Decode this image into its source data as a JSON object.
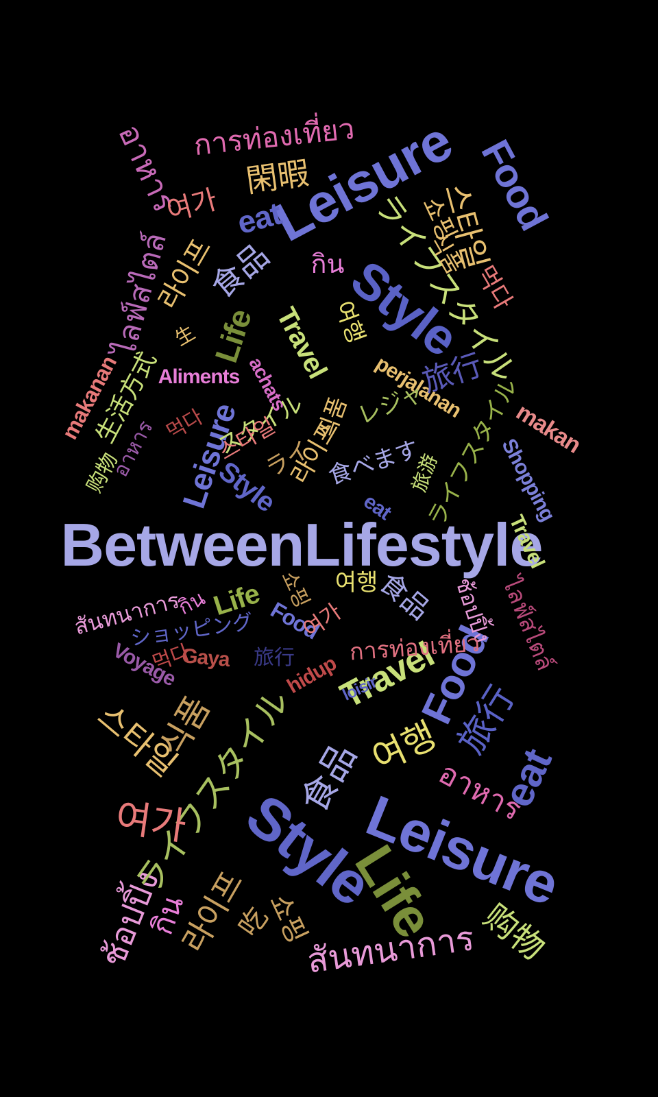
{
  "words": [
    {
      "text": "BetweenLifestyle",
      "color": "#a6a7e6",
      "kind": "b"
    },
    {
      "text": "Leisure",
      "color": "#6f74d6",
      "kind": "b"
    },
    {
      "text": "Leisure",
      "color": "#6f74d6",
      "kind": "b"
    },
    {
      "text": "Style",
      "color": "#5a62c6",
      "kind": "b"
    },
    {
      "text": "Style",
      "color": "#6066c8",
      "kind": "b"
    },
    {
      "text": "Life",
      "color": "#7a8f3a",
      "kind": "b"
    },
    {
      "text": "Food",
      "color": "#6f74d6",
      "kind": "b"
    },
    {
      "text": "Food",
      "color": "#6f74d6",
      "kind": "b"
    },
    {
      "text": "eat",
      "color": "#6066c8",
      "kind": "b"
    },
    {
      "text": "eat",
      "color": "#6066c8",
      "kind": "b"
    },
    {
      "text": "Travel",
      "color": "#c8e07a",
      "kind": "b"
    },
    {
      "text": "Travel",
      "color": "#c8e07a",
      "kind": "b"
    },
    {
      "text": "Travel",
      "color": "#c8e07a",
      "kind": "b"
    },
    {
      "text": "Shopping",
      "color": "#7b80d8",
      "kind": "b"
    },
    {
      "text": "makan",
      "color": "#e88a8a",
      "kind": "b"
    },
    {
      "text": "makanan",
      "color": "#e87a7a",
      "kind": "b"
    },
    {
      "text": "perjalanan",
      "color": "#e8c070",
      "kind": "b"
    },
    {
      "text": "Aliments",
      "color": "#e87ed8",
      "kind": "b"
    },
    {
      "text": "achats",
      "color": "#d86ec8",
      "kind": "b"
    },
    {
      "text": "Life",
      "color": "#7a8f3a",
      "kind": "b"
    },
    {
      "text": "Life",
      "color": "#98b24a",
      "kind": "b"
    },
    {
      "text": "Leisure",
      "color": "#6f74d6",
      "kind": "b"
    },
    {
      "text": "Style",
      "color": "#6066c8",
      "kind": "b"
    },
    {
      "text": "eat",
      "color": "#6066c8",
      "kind": "b"
    },
    {
      "text": "Food",
      "color": "#6f74d6",
      "kind": "b"
    },
    {
      "text": "Voyage",
      "color": "#9a5aa8",
      "kind": "b"
    },
    {
      "text": "Gaya",
      "color": "#b8504a",
      "kind": "b"
    },
    {
      "text": "hidup",
      "color": "#c04a4a",
      "kind": "b"
    },
    {
      "text": "loisir",
      "color": "#6066c8",
      "kind": "b"
    },
    {
      "text": "อาหาร",
      "color": "#c86ab8",
      "kind": "t"
    },
    {
      "text": "การท่องเที่ยว",
      "color": "#e06ab0",
      "kind": "t"
    },
    {
      "text": "ไลฟ์สไตล์",
      "color": "#b86ab8",
      "kind": "t"
    },
    {
      "text": "กิน",
      "color": "#e87ed8",
      "kind": "t"
    },
    {
      "text": "สันทนาการ",
      "color": "#e89ad8",
      "kind": "t"
    },
    {
      "text": "กิน",
      "color": "#e87ed8",
      "kind": "t"
    },
    {
      "text": "ช้อปปิ้ง",
      "color": "#e89ad8",
      "kind": "t"
    },
    {
      "text": "ไลฟ์สไตล์",
      "color": "#b84a7a",
      "kind": "t"
    },
    {
      "text": "การท่องเที่ยว",
      "color": "#e07080",
      "kind": "t"
    },
    {
      "text": "อาหาร",
      "color": "#e06ab0",
      "kind": "t"
    },
    {
      "text": "ช้อปปิ้ง",
      "color": "#e89ad8",
      "kind": "t"
    },
    {
      "text": "กิน",
      "color": "#e87ed8",
      "kind": "t"
    },
    {
      "text": "สันทนาการ",
      "color": "#e89ad8",
      "kind": "t"
    },
    {
      "text": "อาหาร",
      "color": "#9a5aa8",
      "kind": "t"
    },
    {
      "text": "閑暇",
      "color": "#e8c070",
      "kind": "t"
    },
    {
      "text": "食品",
      "color": "#a6a7e6",
      "kind": "t"
    },
    {
      "text": "食品",
      "color": "#a6a7e6",
      "kind": "t"
    },
    {
      "text": "食品",
      "color": "#a6a7e6",
      "kind": "t"
    },
    {
      "text": "旅行",
      "color": "#5a5ab8",
      "kind": "t"
    },
    {
      "text": "旅行",
      "color": "#3a3a88",
      "kind": "t"
    },
    {
      "text": "旅行",
      "color": "#5a62c6",
      "kind": "t"
    },
    {
      "text": "生活方式",
      "color": "#c8e07a",
      "kind": "t"
    },
    {
      "text": "购物",
      "color": "#c8e07a",
      "kind": "t"
    },
    {
      "text": "购物",
      "color": "#c8e07a",
      "kind": "t"
    },
    {
      "text": "旅游",
      "color": "#c8e07a",
      "kind": "t"
    },
    {
      "text": "生",
      "color": "#e8c070",
      "kind": "t"
    },
    {
      "text": "吃",
      "color": "#c8a060",
      "kind": "t"
    },
    {
      "text": "ライフスタイル",
      "color": "#c8e07a",
      "kind": "t"
    },
    {
      "text": "ライフスタイル",
      "color": "#a8c060",
      "kind": "t"
    },
    {
      "text": "ライフスタイル",
      "color": "#98b24a",
      "kind": "t"
    },
    {
      "text": "レジャ",
      "color": "#a8c060",
      "kind": "t"
    },
    {
      "text": "食べます",
      "color": "#a6a7e6",
      "kind": "t"
    },
    {
      "text": "ショッピング",
      "color": "#6066c8",
      "kind": "t"
    },
    {
      "text": "スタイル",
      "color": "#c8e07a",
      "kind": "t"
    },
    {
      "text": "ライ",
      "color": "#c8a060",
      "kind": "t"
    },
    {
      "text": "스타일",
      "color": "#e8c070",
      "kind": "t"
    },
    {
      "text": "스타일",
      "color": "#e87a7a",
      "kind": "t"
    },
    {
      "text": "스타일",
      "color": "#e8c070",
      "kind": "t"
    },
    {
      "text": "여가",
      "color": "#e87a7a",
      "kind": "t"
    },
    {
      "text": "여가",
      "color": "#e87a7a",
      "kind": "t"
    },
    {
      "text": "여가",
      "color": "#e87a7a",
      "kind": "t"
    },
    {
      "text": "라이프",
      "color": "#e8c070",
      "kind": "t"
    },
    {
      "text": "라이프",
      "color": "#e8c070",
      "kind": "t"
    },
    {
      "text": "라이프",
      "color": "#c8a060",
      "kind": "t"
    },
    {
      "text": "쇼핑",
      "color": "#e8c070",
      "kind": "t"
    },
    {
      "text": "쇼핑",
      "color": "#c8a060",
      "kind": "t"
    },
    {
      "text": "쇼핑",
      "color": "#c8a060",
      "kind": "t"
    },
    {
      "text": "여행",
      "color": "#e8e070",
      "kind": "t"
    },
    {
      "text": "여행",
      "color": "#e8e070",
      "kind": "t"
    },
    {
      "text": "여행",
      "color": "#e8e070",
      "kind": "t"
    },
    {
      "text": "먹다",
      "color": "#b84a4a",
      "kind": "t"
    },
    {
      "text": "먹다",
      "color": "#e87a7a",
      "kind": "t"
    },
    {
      "text": "먹다",
      "color": "#c04a4a",
      "kind": "t"
    },
    {
      "text": "식품",
      "color": "#e8c070",
      "kind": "t"
    },
    {
      "text": "식품",
      "color": "#e8c070",
      "kind": "t"
    },
    {
      "text": "식품",
      "color": "#c8a060",
      "kind": "t"
    }
  ]
}
